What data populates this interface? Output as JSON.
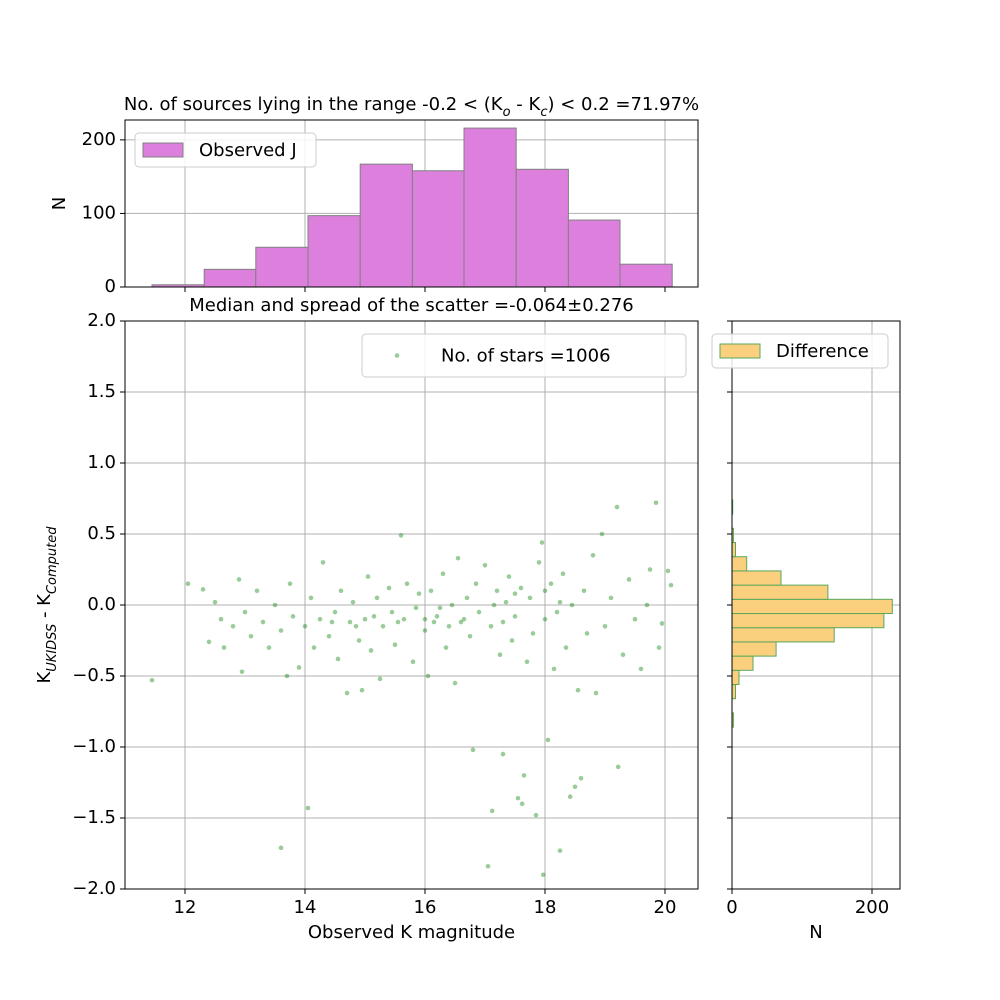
{
  "chart_data": [
    {
      "type": "histogram",
      "title": [
        "No. of sources lying in the range -0.2 < (K",
        "o",
        " - K",
        "c",
        ") < 0.2 =71.97%"
      ],
      "ylabel": "N",
      "name": "Observed J",
      "color": "#dd80dd",
      "edgecolor": "#808080",
      "bins": [
        11.45,
        12.32,
        13.18,
        14.05,
        14.92,
        15.79,
        16.65,
        17.52,
        18.39,
        19.25,
        20.12
      ],
      "counts": [
        3,
        24,
        54,
        97,
        167,
        158,
        216,
        160,
        91,
        31
      ],
      "xlim": [
        11.0,
        20.55
      ],
      "xticks": [
        12,
        14,
        16,
        18,
        20
      ],
      "ylim": [
        0,
        227
      ],
      "yticks": [
        0,
        100,
        200
      ],
      "grid": true,
      "legend": "upper left"
    },
    {
      "type": "scatter",
      "title": [
        "Median and spread of the scatter =-0.064±0.276"
      ],
      "xlabel": "Observed K magnitude",
      "ylabel": [
        "K",
        "UKIDSS",
        " - K",
        "Computed"
      ],
      "name": "No. of stars =1006",
      "color": "green",
      "x": [
        12.05,
        12.3,
        12.4,
        12.5,
        12.6,
        12.65,
        12.8,
        12.9,
        12.95,
        13.0,
        13.1,
        13.2,
        13.3,
        13.4,
        13.5,
        13.6,
        13.7,
        13.75,
        13.8,
        13.9,
        14.0,
        14.1,
        14.15,
        14.25,
        14.3,
        14.4,
        14.5,
        14.55,
        14.6,
        14.7,
        14.75,
        14.8,
        14.9,
        14.95,
        15.0,
        15.05,
        15.1,
        15.2,
        15.25,
        15.3,
        15.4,
        15.45,
        15.5,
        15.6,
        15.65,
        15.7,
        15.8,
        15.85,
        15.9,
        16.0,
        16.05,
        16.1,
        16.2,
        16.3,
        16.35,
        16.45,
        16.5,
        16.55,
        16.6,
        16.7,
        16.75,
        16.8,
        16.85,
        16.9,
        17.0,
        17.05,
        17.1,
        17.12,
        17.2,
        17.25,
        17.3,
        17.35,
        17.4,
        17.45,
        17.5,
        17.55,
        17.6,
        17.62,
        17.65,
        17.7,
        17.75,
        17.8,
        17.85,
        17.9,
        17.95,
        17.97,
        18.0,
        18.05,
        18.1,
        18.15,
        18.2,
        18.25,
        18.3,
        18.35,
        18.42,
        18.45,
        18.5,
        18.55,
        18.6,
        18.65,
        18.7,
        18.8,
        18.85,
        18.95,
        19.0,
        19.1,
        19.2,
        19.22,
        19.3,
        19.4,
        19.5,
        19.6,
        19.7,
        19.75,
        19.85,
        19.9,
        19.95,
        20.05,
        20.1,
        11.45,
        13.6,
        14.05,
        16.0,
        16.15,
        16.25,
        16.4,
        16.65,
        17.15,
        17.3,
        17.5,
        15.55,
        15.15,
        14.85,
        14.45,
        18.25,
        18.0
      ],
      "values": [
        0.15,
        0.11,
        -0.26,
        0.02,
        -0.1,
        -0.3,
        -0.15,
        0.18,
        -0.47,
        -0.05,
        -0.22,
        0.1,
        -0.12,
        -0.3,
        0.0,
        -0.18,
        -0.5,
        0.15,
        -0.08,
        -0.44,
        -0.15,
        0.05,
        -0.3,
        -0.1,
        0.3,
        -0.22,
        -0.05,
        -0.38,
        0.1,
        -0.62,
        -0.12,
        0.02,
        -0.25,
        -0.6,
        -0.1,
        0.2,
        -0.32,
        0.05,
        -0.52,
        -0.15,
        0.12,
        -0.05,
        -0.28,
        0.49,
        -0.1,
        0.15,
        -0.4,
        -0.02,
        0.08,
        -0.18,
        -0.5,
        0.1,
        -0.08,
        0.22,
        -0.3,
        0.0,
        -0.55,
        0.33,
        -0.12,
        0.05,
        -0.22,
        -1.02,
        0.15,
        -0.05,
        0.28,
        -1.84,
        -0.15,
        -1.45,
        0.1,
        -0.35,
        -1.05,
        0.02,
        0.2,
        -0.25,
        -0.08,
        -1.36,
        0.12,
        -1.4,
        -1.2,
        -0.4,
        0.05,
        -0.2,
        -1.48,
        0.3,
        0.44,
        -1.9,
        -0.1,
        -0.95,
        0.15,
        -0.45,
        -0.05,
        -1.73,
        0.22,
        -0.3,
        -1.35,
        0.0,
        -1.28,
        -0.6,
        -1.22,
        0.1,
        -0.2,
        0.35,
        -0.62,
        0.5,
        -0.15,
        0.05,
        0.69,
        -1.14,
        -0.35,
        0.18,
        -0.1,
        -0.45,
        0.0,
        0.25,
        0.72,
        -0.3,
        -0.13,
        0.24,
        0.14,
        -0.53,
        -1.71,
        -1.43,
        -0.1,
        -0.12,
        -0.02,
        -0.15,
        -0.1,
        0.0,
        -0.12,
        0.08,
        -0.12,
        -0.08,
        -0.15,
        -0.12,
        0.02,
        0.1
      ],
      "xlim": [
        11.0,
        20.55
      ],
      "xticks": [
        12,
        14,
        16,
        18,
        20
      ],
      "ylim": [
        -2,
        2
      ],
      "yticks": [
        {
          "value": -2,
          "label": "−2.0"
        },
        {
          "value": -1.5,
          "label": "−1.5"
        },
        {
          "value": -1,
          "label": "−1.0"
        },
        {
          "value": -0.5,
          "label": "−0.5"
        },
        {
          "value": 0,
          "label": "0.0"
        },
        {
          "value": 0.5,
          "label": "0.5"
        },
        {
          "value": 1,
          "label": "1.0"
        },
        {
          "value": 1.5,
          "label": "1.5"
        },
        {
          "value": 2,
          "label": "2.0"
        }
      ],
      "grid": true,
      "legend": "upper right"
    },
    {
      "type": "histogram",
      "orientation": "horizontal",
      "xlabel": "N",
      "name": "Difference",
      "color": "#fad07f",
      "edgecolor": "#5aa85a",
      "bins": [
        -0.86,
        -0.76,
        -0.66,
        -0.56,
        -0.46,
        -0.36,
        -0.26,
        -0.16,
        -0.06,
        0.04,
        0.14,
        0.24,
        0.34,
        0.44,
        0.54,
        0.64,
        0.74
      ],
      "counts": [
        2,
        0,
        5,
        10,
        30,
        63,
        146,
        217,
        229,
        137,
        70,
        21,
        5,
        2,
        0,
        1
      ],
      "xlim": [
        0,
        240
      ],
      "xticks": [
        0,
        200
      ],
      "ylim": [
        -2,
        2
      ],
      "yticks": [
        -2,
        -1.5,
        -1,
        -0.5,
        0,
        0.5,
        1,
        1.5,
        2
      ],
      "grid": true,
      "legend": "upper right"
    }
  ]
}
